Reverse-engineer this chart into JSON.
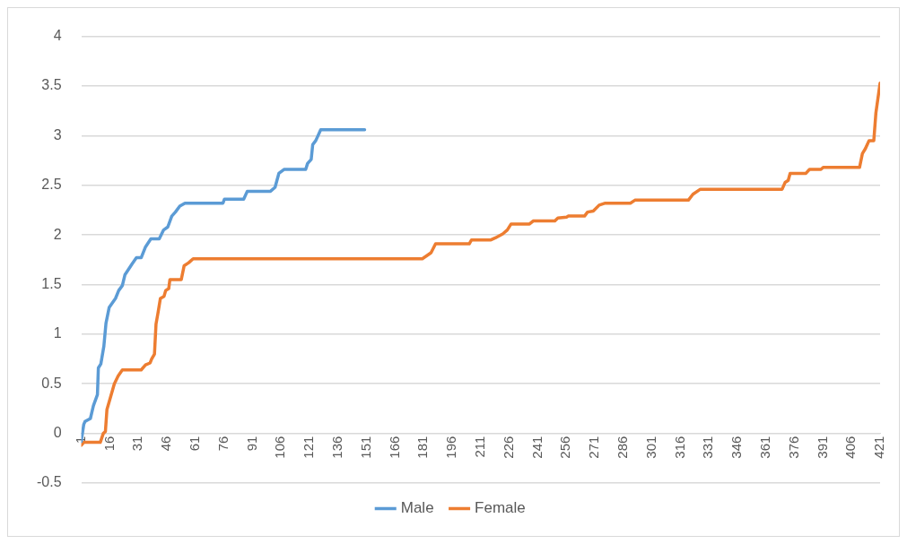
{
  "chart_data": {
    "type": "line",
    "xlim": [
      1,
      421
    ],
    "xticks": [
      1,
      16,
      31,
      46,
      61,
      76,
      91,
      106,
      121,
      136,
      151,
      166,
      181,
      196,
      211,
      226,
      241,
      256,
      271,
      286,
      301,
      316,
      331,
      346,
      361,
      376,
      391,
      406,
      421
    ],
    "ylim": [
      -0.5,
      4
    ],
    "yticks": [
      -0.5,
      0,
      0.5,
      1,
      1.5,
      2,
      2.5,
      3,
      3.5,
      4
    ],
    "grid": "y",
    "legend": "bottom",
    "marker": "none",
    "line_style": "solid",
    "series": [
      {
        "name": "Male",
        "color": "#5b9bd5",
        "x": [
          1,
          2.3,
          3,
          5.8,
          7.4,
          9.5,
          10,
          11.3,
          12.9,
          14,
          15.7,
          19,
          20.7,
          22.6,
          24,
          27.8,
          30,
          32.5,
          34.8,
          37.6,
          42,
          44.3,
          46.5,
          48.6,
          50.5,
          52.8,
          55.5,
          75.5,
          76.3,
          86.4,
          88.3,
          100.5,
          102.9,
          104.9,
          107.6,
          119,
          120,
          121.9,
          122.7,
          124.3,
          126.9,
          150
        ],
        "values": [
          -0.08,
          0.09,
          0.12,
          0.15,
          0.28,
          0.39,
          0.66,
          0.7,
          0.88,
          1.11,
          1.27,
          1.36,
          1.44,
          1.49,
          1.6,
          1.71,
          1.77,
          1.77,
          1.88,
          1.96,
          1.96,
          2.05,
          2.08,
          2.19,
          2.23,
          2.29,
          2.32,
          2.32,
          2.36,
          2.36,
          2.44,
          2.44,
          2.48,
          2.62,
          2.66,
          2.66,
          2.72,
          2.76,
          2.91,
          2.95,
          3.06,
          3.06
        ]
      },
      {
        "name": "Female",
        "color": "#ed7d31",
        "x": [
          1,
          2.3,
          11,
          12.6,
          13.7,
          14.5,
          16,
          18.4,
          20.4,
          22.6,
          32.5,
          34.8,
          37.2,
          38,
          39.5,
          40.3,
          41.4,
          42.6,
          44.5,
          45.4,
          47,
          47.6,
          53.6,
          55.1,
          57.5,
          59.8,
          180.3,
          183.4,
          184.9,
          187.3,
          205,
          206.2,
          216.4,
          218.7,
          222.6,
          225,
          227,
          236.7,
          238.6,
          250,
          251.6,
          256.3,
          257,
          265.6,
          267.2,
          270.2,
          273.3,
          276.5,
          289.7,
          292.1,
          320.2,
          322.6,
          326.5,
          369.5,
          371.1,
          372.7,
          373.7,
          382,
          383.9,
          389.9,
          391.1,
          410.2,
          411.7,
          413.3,
          415.2,
          417.7,
          418.8,
          421
        ],
        "values": [
          -0.12,
          -0.09,
          -0.09,
          0,
          0.02,
          0.24,
          0.34,
          0.5,
          0.58,
          0.64,
          0.64,
          0.69,
          0.71,
          0.75,
          0.8,
          1.1,
          1.22,
          1.36,
          1.38,
          1.44,
          1.46,
          1.55,
          1.55,
          1.69,
          1.72,
          1.76,
          1.76,
          1.8,
          1.82,
          1.91,
          1.91,
          1.95,
          1.95,
          1.97,
          2.01,
          2.05,
          2.11,
          2.11,
          2.14,
          2.14,
          2.17,
          2.18,
          2.19,
          2.19,
          2.23,
          2.24,
          2.3,
          2.32,
          2.32,
          2.35,
          2.35,
          2.41,
          2.46,
          2.46,
          2.53,
          2.55,
          2.62,
          2.62,
          2.66,
          2.66,
          2.68,
          2.68,
          2.82,
          2.87,
          2.95,
          2.95,
          3.23,
          3.53
        ]
      }
    ]
  }
}
